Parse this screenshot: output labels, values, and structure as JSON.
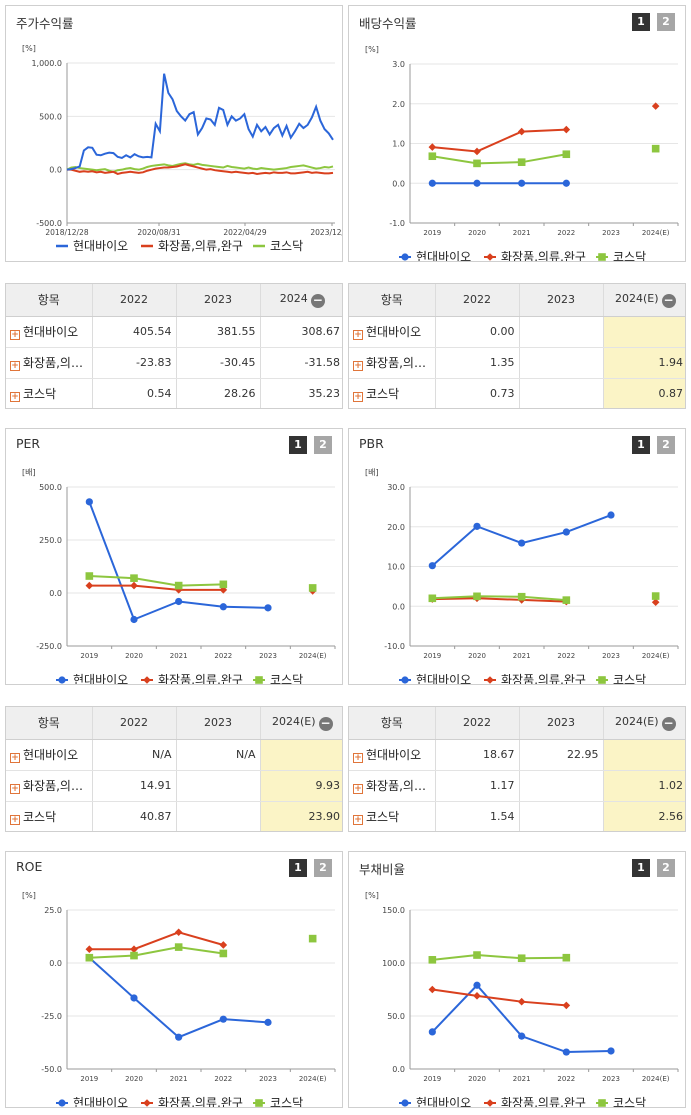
{
  "colors": {
    "hyundai": "#2b66d9",
    "cosmetics": "#d9401e",
    "kosdaq": "#8dc63f"
  },
  "legend": [
    "현대바이오",
    "화장품,의류,완구",
    "코스닥"
  ],
  "buttons": {
    "one": "1",
    "two": "2",
    "minus": "−",
    "plus": "+"
  },
  "titles": {
    "stock": "주가수익률",
    "dividend": "배당수익률",
    "per": "PER",
    "pbr": "PBR",
    "roe": "ROE",
    "debt": "부채비율"
  },
  "table_stock": {
    "header": [
      "항목",
      "2022",
      "2023",
      "2024"
    ],
    "rows": [
      {
        "label": "현대바이오",
        "v": [
          "405.54",
          "381.55",
          "308.67"
        ]
      },
      {
        "label": "화장품,의…",
        "v": [
          "-23.83",
          "-30.45",
          "-31.58"
        ]
      },
      {
        "label": "코스닥",
        "v": [
          "0.54",
          "28.26",
          "35.23"
        ]
      }
    ]
  },
  "table_dividend": {
    "header": [
      "항목",
      "2022",
      "2023",
      "2024(E)"
    ],
    "rows": [
      {
        "label": "현대바이오",
        "v": [
          "0.00",
          "",
          ""
        ]
      },
      {
        "label": "화장품,의…",
        "v": [
          "1.35",
          "",
          "1.94"
        ]
      },
      {
        "label": "코스닥",
        "v": [
          "0.73",
          "",
          "0.87"
        ]
      }
    ]
  },
  "table_per": {
    "header": [
      "항목",
      "2022",
      "2023",
      "2024(E)"
    ],
    "rows": [
      {
        "label": "현대바이오",
        "v": [
          "N/A",
          "N/A",
          ""
        ]
      },
      {
        "label": "화장품,의…",
        "v": [
          "14.91",
          "",
          "9.93"
        ]
      },
      {
        "label": "코스닥",
        "v": [
          "40.87",
          "",
          "23.90"
        ]
      }
    ]
  },
  "table_pbr": {
    "header": [
      "항목",
      "2022",
      "2023",
      "2024(E)"
    ],
    "rows": [
      {
        "label": "현대바이오",
        "v": [
          "18.67",
          "22.95",
          ""
        ]
      },
      {
        "label": "화장품,의…",
        "v": [
          "1.17",
          "",
          "1.02"
        ]
      },
      {
        "label": "코스닥",
        "v": [
          "1.54",
          "",
          "2.56"
        ]
      }
    ]
  },
  "chart_data": [
    {
      "id": "stock",
      "type": "line",
      "title": "주가수익률",
      "unit": "[%]",
      "ylim": [
        -500,
        1000
      ],
      "yticks": [
        "1,000.0",
        "500.0",
        "0.0",
        "-500.0"
      ],
      "xticks": [
        "2018/12/28",
        "2020/08/31",
        "2022/04/29",
        "2023/12/28"
      ],
      "series": [
        {
          "name": "현대바이오",
          "values": [
            0,
            5,
            15,
            30,
            180,
            210,
            205,
            140,
            135,
            150,
            160,
            155,
            120,
            110,
            135,
            115,
            145,
            125,
            115,
            120,
            115,
            430,
            360,
            900,
            720,
            660,
            550,
            500,
            460,
            520,
            540,
            330,
            390,
            480,
            470,
            420,
            580,
            560,
            420,
            500,
            460,
            480,
            520,
            380,
            310,
            420,
            360,
            400,
            330,
            390,
            420,
            320,
            410,
            300,
            360,
            430,
            390,
            420,
            490,
            590,
            460,
            380,
            340,
            280
          ]
        },
        {
          "name": "화장품,의류,완구",
          "values": [
            0,
            0,
            -10,
            -20,
            -15,
            -20,
            -15,
            -25,
            -20,
            -30,
            -25,
            -20,
            -40,
            -30,
            -25,
            -20,
            -25,
            -30,
            -25,
            -10,
            0,
            10,
            15,
            20,
            20,
            25,
            30,
            40,
            50,
            40,
            30,
            20,
            10,
            0,
            5,
            -5,
            -10,
            -15,
            -20,
            -25,
            -20,
            -25,
            -30,
            -35,
            -30,
            -40,
            -35,
            -30,
            -35,
            -25,
            -30,
            -30,
            -25,
            -35,
            -35,
            -30,
            -25,
            -20,
            -30,
            -25,
            -30,
            -35,
            -35,
            -30
          ]
        },
        {
          "name": "코스닥",
          "values": [
            0,
            20,
            25,
            15,
            10,
            5,
            0,
            -5,
            0,
            5,
            -10,
            -20,
            -5,
            0,
            10,
            15,
            5,
            0,
            10,
            25,
            35,
            40,
            45,
            50,
            40,
            35,
            45,
            55,
            60,
            50,
            45,
            55,
            45,
            40,
            35,
            30,
            25,
            20,
            35,
            25,
            20,
            15,
            10,
            20,
            10,
            5,
            15,
            10,
            5,
            0,
            5,
            10,
            15,
            25,
            30,
            35,
            40,
            30,
            20,
            10,
            15,
            25,
            20,
            30
          ]
        }
      ]
    },
    {
      "id": "dividend",
      "type": "line",
      "title": "배당수익률",
      "unit": "[%]",
      "ylim": [
        -1,
        3
      ],
      "yticks": [
        "3.0",
        "2.0",
        "1.0",
        "0.0",
        "-1.0"
      ],
      "categories": [
        "2019",
        "2020",
        "2021",
        "2022",
        "2023",
        "2024(E)"
      ],
      "series": [
        {
          "name": "현대바이오",
          "values": [
            0.0,
            0.0,
            0.0,
            0.0,
            null,
            null
          ]
        },
        {
          "name": "화장품,의류,완구",
          "values": [
            0.91,
            0.8,
            1.3,
            1.35,
            null,
            1.94
          ]
        },
        {
          "name": "코스닥",
          "values": [
            0.68,
            0.5,
            0.53,
            0.73,
            null,
            0.87
          ]
        }
      ]
    },
    {
      "id": "per",
      "type": "line",
      "title": "PER",
      "unit": "[배]",
      "ylim": [
        -250,
        500
      ],
      "yticks": [
        "500.0",
        "250.0",
        "0.0",
        "-250.0"
      ],
      "categories": [
        "2019",
        "2020",
        "2021",
        "2022",
        "2023",
        "2024(E)"
      ],
      "series": [
        {
          "name": "현대바이오",
          "values": [
            430,
            -125,
            -40,
            -65,
            -70,
            null
          ]
        },
        {
          "name": "화장품,의류,완구",
          "values": [
            35,
            35,
            15,
            14.91,
            null,
            9.93
          ]
        },
        {
          "name": "코스닥",
          "values": [
            80,
            70,
            35,
            40.87,
            null,
            23.9
          ]
        }
      ]
    },
    {
      "id": "pbr",
      "type": "line",
      "title": "PBR",
      "unit": "[배]",
      "ylim": [
        -10,
        30
      ],
      "yticks": [
        "30.0",
        "20.0",
        "10.0",
        "0.0",
        "-10.0"
      ],
      "categories": [
        "2019",
        "2020",
        "2021",
        "2022",
        "2023",
        "2024(E)"
      ],
      "series": [
        {
          "name": "현대바이오",
          "values": [
            10.2,
            20.1,
            15.9,
            18.67,
            22.95,
            null
          ]
        },
        {
          "name": "화장품,의류,완구",
          "values": [
            1.8,
            2.0,
            1.6,
            1.17,
            null,
            1.02
          ]
        },
        {
          "name": "코스닥",
          "values": [
            2.0,
            2.5,
            2.4,
            1.54,
            null,
            2.56
          ]
        }
      ]
    },
    {
      "id": "roe",
      "type": "line",
      "title": "ROE",
      "unit": "[%]",
      "ylim": [
        -50,
        25
      ],
      "yticks": [
        "25.0",
        "0.0",
        "-25.0",
        "-50.0"
      ],
      "categories": [
        "2019",
        "2020",
        "2021",
        "2022",
        "2023",
        "2024(E)"
      ],
      "series": [
        {
          "name": "현대바이오",
          "values": [
            2.5,
            -16.5,
            -35,
            -26.5,
            -28,
            null
          ]
        },
        {
          "name": "화장품,의류,완구",
          "values": [
            6.5,
            6.5,
            14.5,
            8.5,
            null,
            null
          ]
        },
        {
          "name": "코스닥",
          "values": [
            2.5,
            3.5,
            7.5,
            4.5,
            null,
            11.5
          ]
        }
      ]
    },
    {
      "id": "debt",
      "type": "line",
      "title": "부채비율",
      "unit": "[%]",
      "ylim": [
        0,
        150
      ],
      "yticks": [
        "150.0",
        "100.0",
        "50.0",
        "0.0"
      ],
      "categories": [
        "2019",
        "2020",
        "2021",
        "2022",
        "2023",
        "2024(E)"
      ],
      "series": [
        {
          "name": "현대바이오",
          "values": [
            35,
            79,
            31,
            16,
            17,
            null
          ]
        },
        {
          "name": "화장품,의류,완구",
          "values": [
            75,
            69,
            63.5,
            60,
            null,
            null
          ]
        },
        {
          "name": "코스닥",
          "values": [
            103,
            107.5,
            104.5,
            105,
            null,
            null
          ]
        }
      ]
    }
  ]
}
